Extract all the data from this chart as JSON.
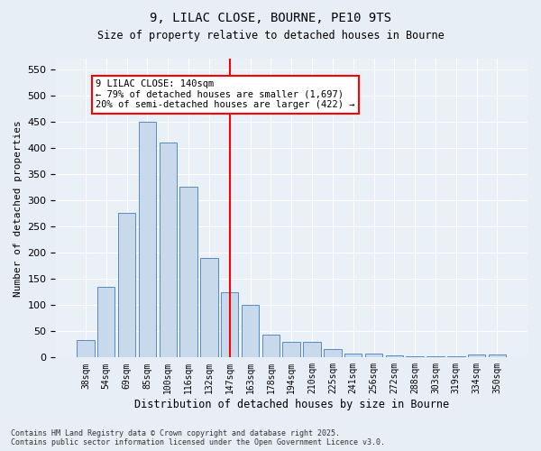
{
  "title1": "9, LILAC CLOSE, BOURNE, PE10 9TS",
  "title2": "Size of property relative to detached houses in Bourne",
  "xlabel": "Distribution of detached houses by size in Bourne",
  "ylabel": "Number of detached properties",
  "categories": [
    "38sqm",
    "54sqm",
    "69sqm",
    "85sqm",
    "100sqm",
    "116sqm",
    "132sqm",
    "147sqm",
    "163sqm",
    "178sqm",
    "194sqm",
    "210sqm",
    "225sqm",
    "241sqm",
    "256sqm",
    "272sqm",
    "288sqm",
    "303sqm",
    "319sqm",
    "334sqm",
    "350sqm"
  ],
  "values": [
    33,
    135,
    275,
    450,
    410,
    325,
    190,
    125,
    100,
    44,
    30,
    30,
    16,
    7,
    8,
    4,
    3,
    3,
    2,
    5,
    5
  ],
  "bar_color": "#c9d9ec",
  "bar_edge_color": "#5a8abf",
  "vline_x_index": 7,
  "vline_color": "red",
  "annotation_title": "9 LILAC CLOSE: 140sqm",
  "annotation_line1": "← 79% of detached houses are smaller (1,697)",
  "annotation_line2": "20% of semi-detached houses are larger (422) →",
  "annotation_box_color": "white",
  "annotation_box_edge_color": "red",
  "footer1": "Contains HM Land Registry data © Crown copyright and database right 2025.",
  "footer2": "Contains public sector information licensed under the Open Government Licence v3.0.",
  "bg_color": "#e8eef5",
  "plot_bg_color": "#eaf0f8",
  "ylim": [
    0,
    570
  ],
  "yticks": [
    0,
    50,
    100,
    150,
    200,
    250,
    300,
    350,
    400,
    450,
    500,
    550
  ]
}
